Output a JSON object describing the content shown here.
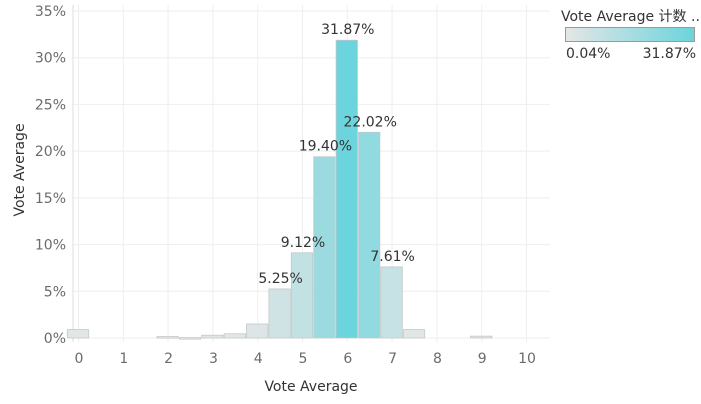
{
  "chart_data": {
    "type": "bar",
    "x": [
      0,
      0.5,
      1,
      1.5,
      2,
      2.5,
      3,
      3.5,
      4,
      4.5,
      5,
      5.5,
      6,
      6.5,
      7,
      7.5,
      8,
      8.5,
      9,
      9.5,
      10
    ],
    "values": [
      0.9,
      0,
      0,
      0,
      0.15,
      0.04,
      0.3,
      0.45,
      1.5,
      5.25,
      9.12,
      19.4,
      31.87,
      22.02,
      7.61,
      0.9,
      0,
      0,
      0.2,
      0,
      0
    ],
    "data_labels": [
      "",
      "",
      "",
      "",
      "",
      "",
      "",
      "",
      "",
      "5.25%",
      "9.12%",
      "19.40%",
      "31.87%",
      "22.02%",
      "7.61%",
      "",
      "",
      "",
      "",
      "",
      ""
    ],
    "xlabel": "Vote Average",
    "ylabel": "Vote Average",
    "x_ticks": [
      "0",
      "1",
      "2",
      "3",
      "4",
      "5",
      "6",
      "7",
      "8",
      "9",
      "10"
    ],
    "y_ticks": [
      "0%",
      "5%",
      "10%",
      "15%",
      "20%",
      "25%",
      "30%",
      "35%"
    ],
    "ylim": [
      0,
      35
    ],
    "grid": true,
    "legend": {
      "title": "Vote Average 计数 ..",
      "min_label": "0.04%",
      "max_label": "31.87%",
      "min": 0.04,
      "max": 31.87,
      "color_low": "#e4e6e6",
      "color_high": "#6cd4dc",
      "placement": "top-right"
    }
  }
}
